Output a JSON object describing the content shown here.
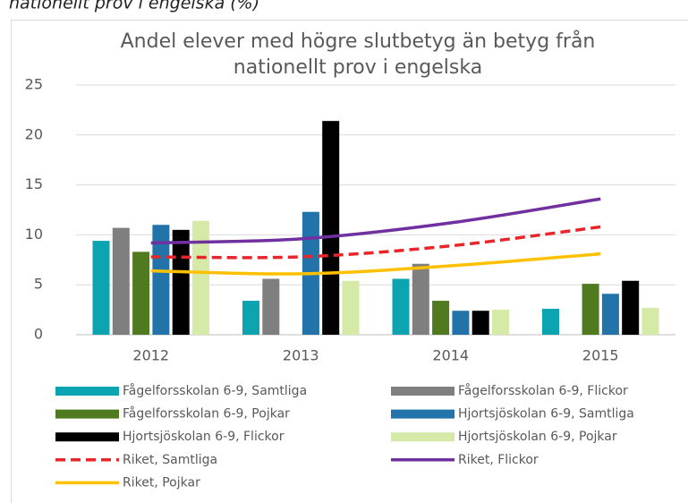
{
  "header": "nationellt prov i engelska (%)",
  "chart_data": {
    "type": "bar",
    "title": [
      "Andel elever med högre slutbetyg än betyg från",
      "nationellt prov i engelska"
    ],
    "categories": [
      "2012",
      "2013",
      "2014",
      "2015"
    ],
    "ylim": [
      0,
      25
    ],
    "yticks": [
      0,
      5,
      10,
      15,
      20,
      25
    ],
    "grid": true,
    "series": [
      {
        "name": "Fågelforsskolan 6-9, Samtliga",
        "color": "#0ba4b0",
        "values": [
          9.4,
          3.4,
          5.6,
          2.6
        ]
      },
      {
        "name": "Fågelforsskolan 6-9, Flickor",
        "color": "#7f7f7f",
        "values": [
          10.7,
          5.6,
          7.1,
          null
        ]
      },
      {
        "name": "Fågelforsskolan 6-9, Pojkar",
        "color": "#4f7a1f",
        "values": [
          8.3,
          null,
          3.4,
          5.1
        ]
      },
      {
        "name": "Hjortsjöskolan 6-9, Samtliga",
        "color": "#2273a9",
        "values": [
          11.0,
          12.3,
          2.4,
          4.1
        ]
      },
      {
        "name": "Hjortsjöskolan 6-9, Flickor",
        "color": "#000000",
        "values": [
          10.5,
          21.4,
          2.4,
          5.4
        ]
      },
      {
        "name": "Hjortsjöskolan 6-9, Pojkar",
        "color": "#d5eaa6",
        "values": [
          11.4,
          5.4,
          2.5,
          2.7
        ]
      },
      {
        "name": "Riket, Samtliga",
        "type": "line",
        "dashed": true,
        "color": "#e8262a",
        "values": [
          7.8,
          7.8,
          8.9,
          10.8
        ]
      },
      {
        "name": "Riket, Flickor",
        "type": "line",
        "color": "#7030a0",
        "values": [
          9.2,
          9.6,
          11.2,
          13.6
        ]
      },
      {
        "name": "Riket, Pojkar",
        "type": "line",
        "color": "#ffc000",
        "values": [
          6.4,
          6.1,
          6.9,
          8.1
        ]
      }
    ]
  }
}
